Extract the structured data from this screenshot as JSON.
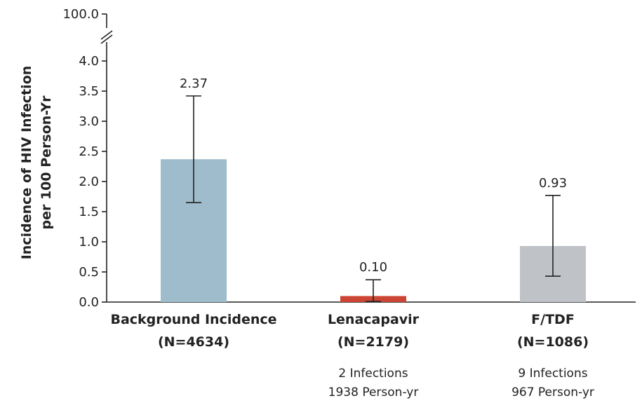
{
  "chart_data": {
    "type": "bar",
    "ylabel_lines": [
      "Incidence of HIV Infection",
      "per 100 Person-Yr"
    ],
    "yticks": [
      "0.0",
      "0.5",
      "1.0",
      "1.5",
      "2.0",
      "2.5",
      "3.0",
      "3.5",
      "4.0"
    ],
    "ytick_break": "100.0",
    "ylim": [
      0,
      4
    ],
    "categories": [
      {
        "name": "Background Incidence",
        "n": "(N=4634)",
        "value": 2.37,
        "value_label": "2.37",
        "ci": [
          1.65,
          3.42
        ],
        "color": "#9fbccc",
        "notes": []
      },
      {
        "name": "Lenacapavir",
        "n": "(N=2179)",
        "value": 0.1,
        "value_label": "0.10",
        "ci": [
          0.01,
          0.37
        ],
        "color": "#cc4433",
        "notes": [
          "2 Infections",
          "1938 Person-yr"
        ]
      },
      {
        "name": "F/TDF",
        "n": "(N=1086)",
        "value": 0.93,
        "value_label": "0.93",
        "ci": [
          0.43,
          1.77
        ],
        "color": "#bfc3c7",
        "notes": [
          "9 Infections",
          "967 Person-yr"
        ]
      }
    ]
  }
}
